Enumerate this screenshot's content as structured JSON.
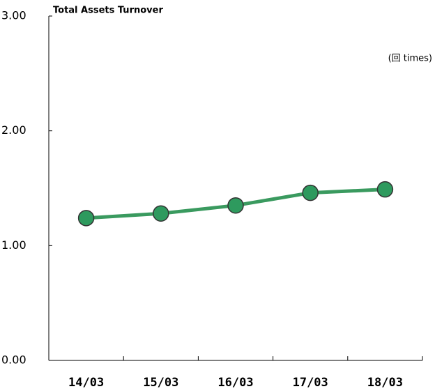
{
  "chart_data": {
    "type": "line",
    "title": "Total Assets Turnover",
    "unit_label": "(回  times)",
    "categories": [
      "14/03",
      "15/03",
      "16/03",
      "17/03",
      "18/03"
    ],
    "series": [
      {
        "name": "Total Assets Turnover",
        "color": "#3a9a5f",
        "marker_color": "#2e9a5e",
        "values": [
          1.24,
          1.28,
          1.35,
          1.46,
          1.49
        ]
      }
    ],
    "ylim": [
      0,
      3
    ],
    "yticks": [
      {
        "value": 0,
        "label": "0.00"
      },
      {
        "value": 1,
        "label": "1.00"
      },
      {
        "value": 2,
        "label": "2.00"
      },
      {
        "value": 3,
        "label": "3.00"
      }
    ],
    "grid": false
  }
}
